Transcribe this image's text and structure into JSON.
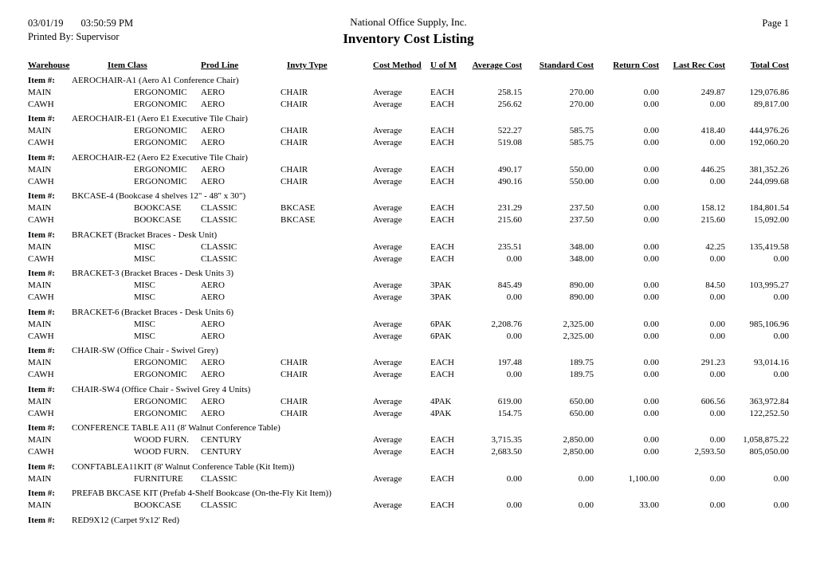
{
  "meta": {
    "date": "03/01/19",
    "time": "03:50:59 PM",
    "printed_by_label": "Printed By:",
    "printed_by_value": "Supervisor",
    "company": "National Office Supply, Inc.",
    "report_title": "Inventory Cost Listing",
    "page_label": "Page 1"
  },
  "item_label": "Item #:",
  "columns": [
    "Warehouse",
    "Item Class",
    "Prod Line",
    "Invty Type",
    "Cost Method",
    "U of M",
    "Average Cost",
    "Standard Cost",
    "Return Cost",
    "Last Rec Cost",
    "Total Cost"
  ],
  "groups": [
    {
      "item": "AEROCHAIR-A1 (Aero A1 Conference Chair)",
      "rows": [
        [
          "MAIN",
          "ERGONOMIC",
          "AERO",
          "CHAIR",
          "Average",
          "EACH",
          "258.15",
          "270.00",
          "0.00",
          "249.87",
          "129,076.86"
        ],
        [
          "CAWH",
          "ERGONOMIC",
          "AERO",
          "CHAIR",
          "Average",
          "EACH",
          "256.62",
          "270.00",
          "0.00",
          "0.00",
          "89,817.00"
        ]
      ]
    },
    {
      "item": "AEROCHAIR-E1 (Aero E1 Executive Tile Chair)",
      "rows": [
        [
          "MAIN",
          "ERGONOMIC",
          "AERO",
          "CHAIR",
          "Average",
          "EACH",
          "522.27",
          "585.75",
          "0.00",
          "418.40",
          "444,976.26"
        ],
        [
          "CAWH",
          "ERGONOMIC",
          "AERO",
          "CHAIR",
          "Average",
          "EACH",
          "519.08",
          "585.75",
          "0.00",
          "0.00",
          "192,060.20"
        ]
      ]
    },
    {
      "item": "AEROCHAIR-E2 (Aero E2 Executive Tile Chair)",
      "rows": [
        [
          "MAIN",
          "ERGONOMIC",
          "AERO",
          "CHAIR",
          "Average",
          "EACH",
          "490.17",
          "550.00",
          "0.00",
          "446.25",
          "381,352.26"
        ],
        [
          "CAWH",
          "ERGONOMIC",
          "AERO",
          "CHAIR",
          "Average",
          "EACH",
          "490.16",
          "550.00",
          "0.00",
          "0.00",
          "244,099.68"
        ]
      ]
    },
    {
      "item": "BKCASE-4 (Bookcase 4 shelves 12\" - 48\" x 30\")",
      "rows": [
        [
          "MAIN",
          "BOOKCASE",
          "CLASSIC",
          "BKCASE",
          "Average",
          "EACH",
          "231.29",
          "237.50",
          "0.00",
          "158.12",
          "184,801.54"
        ],
        [
          "CAWH",
          "BOOKCASE",
          "CLASSIC",
          "BKCASE",
          "Average",
          "EACH",
          "215.60",
          "237.50",
          "0.00",
          "215.60",
          "15,092.00"
        ]
      ]
    },
    {
      "item": "BRACKET (Bracket Braces - Desk Unit)",
      "rows": [
        [
          "MAIN",
          "MISC",
          "CLASSIC",
          "",
          "Average",
          "EACH",
          "235.51",
          "348.00",
          "0.00",
          "42.25",
          "135,419.58"
        ],
        [
          "CAWH",
          "MISC",
          "CLASSIC",
          "",
          "Average",
          "EACH",
          "0.00",
          "348.00",
          "0.00",
          "0.00",
          "0.00"
        ]
      ]
    },
    {
      "item": "BRACKET-3 (Bracket Braces - Desk Units 3)",
      "rows": [
        [
          "MAIN",
          "MISC",
          "AERO",
          "",
          "Average",
          "3PAK",
          "845.49",
          "890.00",
          "0.00",
          "84.50",
          "103,995.27"
        ],
        [
          "CAWH",
          "MISC",
          "AERO",
          "",
          "Average",
          "3PAK",
          "0.00",
          "890.00",
          "0.00",
          "0.00",
          "0.00"
        ]
      ]
    },
    {
      "item": "BRACKET-6 (Bracket Braces - Desk Units 6)",
      "rows": [
        [
          "MAIN",
          "MISC",
          "AERO",
          "",
          "Average",
          "6PAK",
          "2,208.76",
          "2,325.00",
          "0.00",
          "0.00",
          "985,106.96"
        ],
        [
          "CAWH",
          "MISC",
          "AERO",
          "",
          "Average",
          "6PAK",
          "0.00",
          "2,325.00",
          "0.00",
          "0.00",
          "0.00"
        ]
      ]
    },
    {
      "item": "CHAIR-SW (Office Chair - Swivel Grey)",
      "rows": [
        [
          "MAIN",
          "ERGONOMIC",
          "AERO",
          "CHAIR",
          "Average",
          "EACH",
          "197.48",
          "189.75",
          "0.00",
          "291.23",
          "93,014.16"
        ],
        [
          "CAWH",
          "ERGONOMIC",
          "AERO",
          "CHAIR",
          "Average",
          "EACH",
          "0.00",
          "189.75",
          "0.00",
          "0.00",
          "0.00"
        ]
      ]
    },
    {
      "item": "CHAIR-SW4 (Office Chair - Swivel Grey 4 Units)",
      "rows": [
        [
          "MAIN",
          "ERGONOMIC",
          "AERO",
          "CHAIR",
          "Average",
          "4PAK",
          "619.00",
          "650.00",
          "0.00",
          "606.56",
          "363,972.84"
        ],
        [
          "CAWH",
          "ERGONOMIC",
          "AERO",
          "CHAIR",
          "Average",
          "4PAK",
          "154.75",
          "650.00",
          "0.00",
          "0.00",
          "122,252.50"
        ]
      ]
    },
    {
      "item": "CONFERENCE TABLE A11 (8' Walnut Conference Table)",
      "rows": [
        [
          "MAIN",
          "WOOD FURN.",
          "CENTURY",
          "",
          "Average",
          "EACH",
          "3,715.35",
          "2,850.00",
          "0.00",
          "0.00",
          "1,058,875.22"
        ],
        [
          "CAWH",
          "WOOD FURN.",
          "CENTURY",
          "",
          "Average",
          "EACH",
          "2,683.50",
          "2,850.00",
          "0.00",
          "2,593.50",
          "805,050.00"
        ]
      ]
    },
    {
      "item": "CONFTABLEA11KIT (8' Walnut Conference Table (Kit Item))",
      "rows": [
        [
          "MAIN",
          "FURNITURE",
          "CLASSIC",
          "",
          "Average",
          "EACH",
          "0.00",
          "0.00",
          "1,100.00",
          "0.00",
          "0.00"
        ]
      ]
    },
    {
      "item": "PREFAB BKCASE KIT (Prefab 4-Shelf Bookcase (On-the-Fly Kit Item))",
      "rows": [
        [
          "MAIN",
          "BOOKCASE",
          "CLASSIC",
          "",
          "Average",
          "EACH",
          "0.00",
          "0.00",
          "33.00",
          "0.00",
          "0.00"
        ]
      ]
    },
    {
      "item": "RED9X12 (Carpet 9'x12' Red)",
      "rows": []
    }
  ]
}
